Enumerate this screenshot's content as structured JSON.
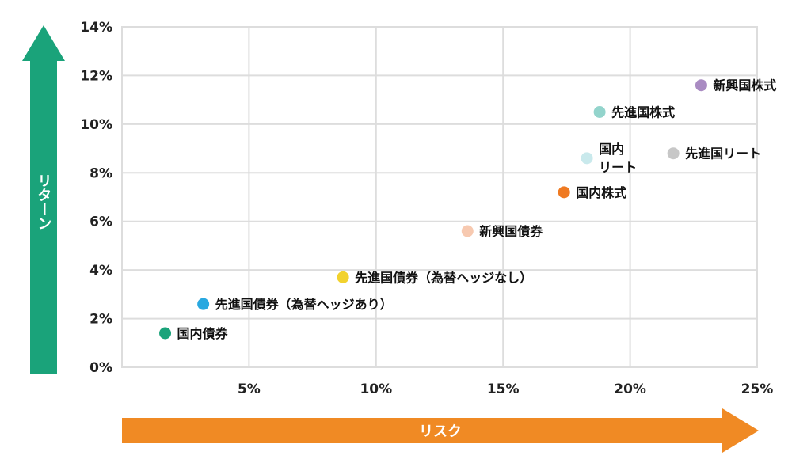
{
  "chart_data": {
    "type": "scatter",
    "title": "",
    "xlabel": "リスク",
    "ylabel": "リターン",
    "xlim": [
      0,
      25
    ],
    "ylim": [
      0,
      14
    ],
    "x_ticks": [
      "5%",
      "10%",
      "15%",
      "20%",
      "25%"
    ],
    "y_ticks": [
      "0%",
      "2%",
      "4%",
      "6%",
      "8%",
      "10%",
      "12%",
      "14%"
    ],
    "grid": true,
    "colors": {
      "risk_arrow": "#f08a24",
      "return_arrow": "#1aa37a",
      "grid": "#dddddd"
    },
    "points": [
      {
        "label": "国内債券",
        "x": 1.7,
        "y": 1.4,
        "color": "#1aa37a"
      },
      {
        "label": "先進国債券（為替ヘッジあり）",
        "x": 3.2,
        "y": 2.6,
        "color": "#29a8e0"
      },
      {
        "label": "先進国債券（為替ヘッジなし）",
        "x": 8.7,
        "y": 3.7,
        "color": "#f2d22e"
      },
      {
        "label": "新興国債券",
        "x": 13.6,
        "y": 5.6,
        "color": "#f7c9b0"
      },
      {
        "label": "国内株式",
        "x": 17.4,
        "y": 7.2,
        "color": "#ef7a22"
      },
      {
        "label": "国内\nリート",
        "x": 18.3,
        "y": 8.6,
        "color": "#c9e9ec"
      },
      {
        "label": "先進国株式",
        "x": 18.8,
        "y": 10.5,
        "color": "#93d4cc"
      },
      {
        "label": "先進国リート",
        "x": 21.7,
        "y": 8.8,
        "color": "#c7c7c7"
      },
      {
        "label": "新興国株式",
        "x": 22.8,
        "y": 11.6,
        "color": "#a98bc2"
      }
    ]
  }
}
